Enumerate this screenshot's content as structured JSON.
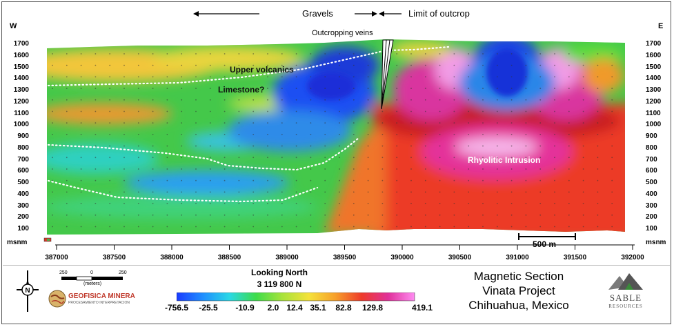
{
  "header": {
    "gravels": "Gravels",
    "limit_of_outcrop": "Limit of outcrop",
    "west": "W",
    "east": "E"
  },
  "y_axis": {
    "labels": [
      "1700",
      "1600",
      "1500",
      "1400",
      "1300",
      "1200",
      "1100",
      "1000",
      "900",
      "800",
      "700",
      "600",
      "500",
      "400",
      "300",
      "200",
      "100"
    ],
    "unit": "msnm"
  },
  "x_axis": {
    "labels": [
      "387000",
      "387500",
      "388000",
      "388500",
      "389000",
      "389500",
      "390000",
      "390500",
      "391000",
      "391500",
      "392000"
    ]
  },
  "annotations": {
    "outcropping_veins": "Outcropping veins",
    "upper_volcanics": "Upper volcanics",
    "limestone": "Limestone?",
    "rhyolitic_intrusion": "Rhyolitic Intrusion"
  },
  "scale_bar": {
    "label": "500 m"
  },
  "legend_bottom": {
    "looking": "Looking North",
    "northing": "3 119 800 N",
    "colorbar_values": [
      "-756.5",
      "-25.5",
      "-10.9",
      "2.0",
      "12.4",
      "35.1",
      "82.8",
      "129.8",
      "419.1"
    ],
    "colorbar_colors": [
      "#1a3cff",
      "#1f8fff",
      "#2ad8e6",
      "#3ddc4a",
      "#a8e33b",
      "#f5e23a",
      "#f7a02a",
      "#ee3a2a",
      "#e0309a",
      "#ff8cf2"
    ]
  },
  "scale_small": {
    "ticks": [
      "250",
      "0",
      "250"
    ],
    "unit": "(meters)"
  },
  "logos": {
    "geofisica_name": "GEOFISICA MINERA",
    "geofisica_tag": "PROCESAMIENTO INTERPRETACION",
    "sable_line1": "SABLE",
    "sable_line2": "RESOURCES"
  },
  "title": {
    "line1": "Magnetic Section",
    "line2": "Vinata Project",
    "line3": "Chihuahua, Mexico"
  }
}
